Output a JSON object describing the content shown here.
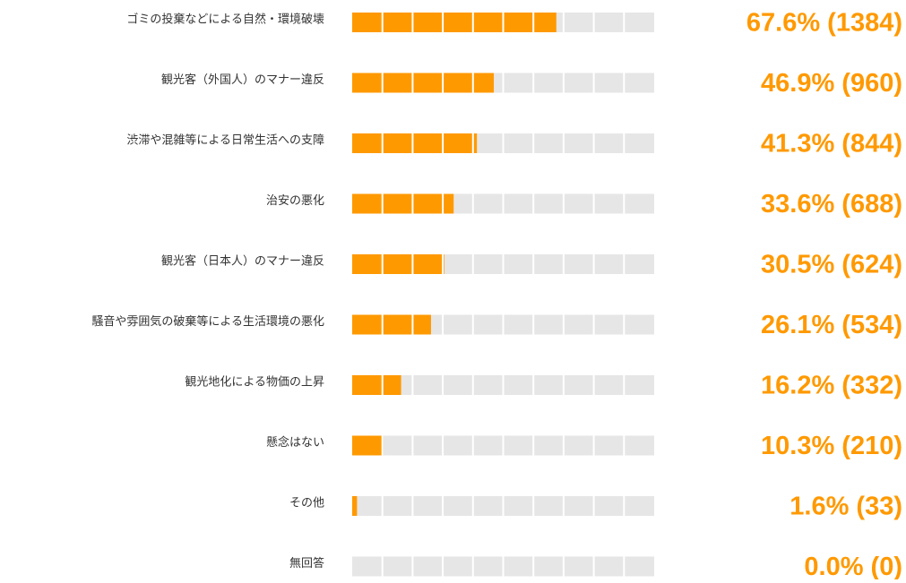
{
  "chart_data": {
    "type": "bar",
    "orientation": "horizontal",
    "categories": [
      "ゴミの投棄などによる自然・環境破壊",
      "観光客（外国人）のマナー違反",
      "渋滞や混雑等による日常生活への支障",
      "治安の悪化",
      "観光客（日本人）のマナー違反",
      "騒音や雰囲気の破棄等による生活環境の悪化",
      "観光地化による物価の上昇",
      "懸念はない",
      "その他",
      "無回答"
    ],
    "values": [
      67.6,
      46.9,
      41.3,
      33.6,
      30.5,
      26.1,
      16.2,
      10.3,
      1.6,
      0.0
    ],
    "value_labels": [
      "67.6% (1384)",
      "46.9% (960)",
      "41.3% (844)",
      "33.6% (688)",
      "30.5% (624)",
      "26.1% (534)",
      "16.2% (332)",
      "10.3% (210)",
      "1.6% (33)",
      "0.0% (0)"
    ],
    "color": "#ff9900",
    "xlim": [
      0,
      100
    ]
  }
}
